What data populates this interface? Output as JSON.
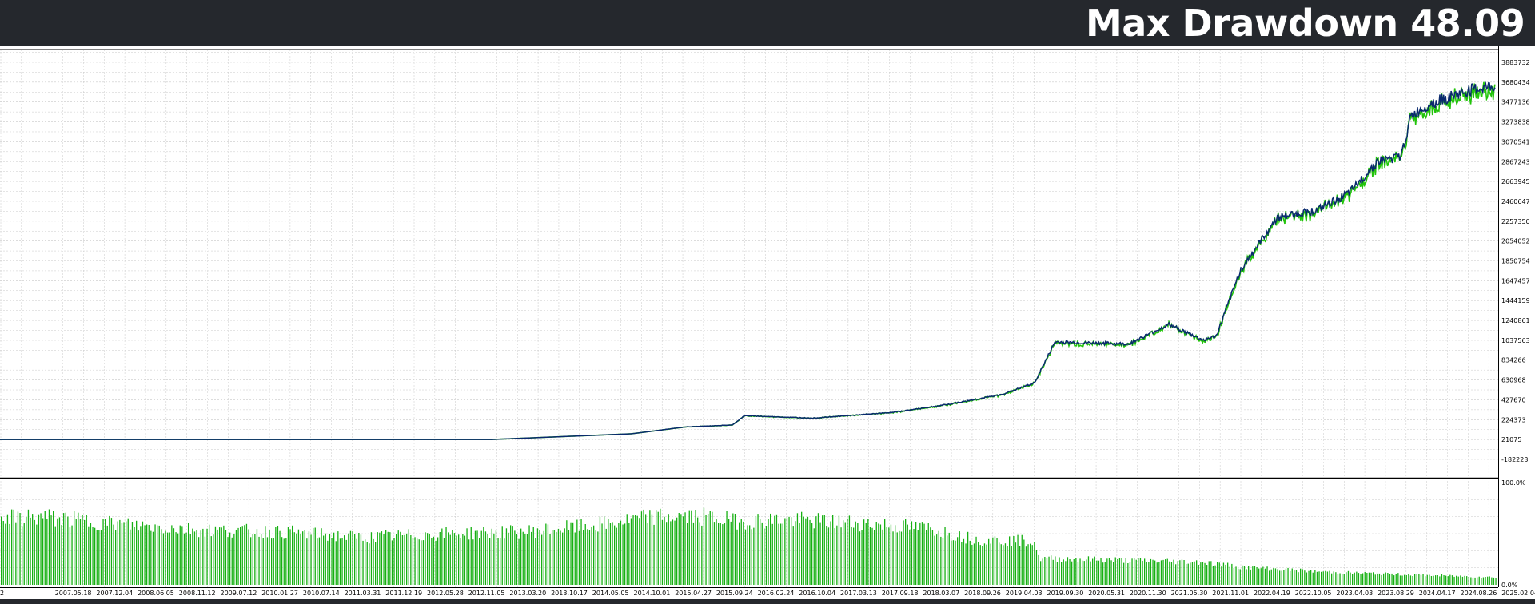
{
  "header": {
    "title": "Max Drawdown 48.09"
  },
  "colors": {
    "background": "#25282d",
    "plot_background": "#ffffff",
    "grid": "#c8c8c8",
    "balance_line": "#0a2a6e",
    "equity_line": "#22c40a",
    "deposit_load_bars": "#16b012"
  },
  "chart_data": [
    {
      "type": "line",
      "series": [
        {
          "name": "",
          "color": "#0a2a6e"
        },
        {
          "name": "",
          "color": "#22c40a"
        }
      ],
      "x_start": "2006-12-01",
      "x_end": "2025-07-01",
      "x": [
        "2006-12-01",
        "2009-06-01",
        "2013-01-01",
        "2014-10-01",
        "2015-06-01",
        "2016-01-01",
        "2016-02-24",
        "2017-01-01",
        "2018-01-01",
        "2018-09-01",
        "2019-05-01",
        "2019-09-30",
        "2020-01-01",
        "2020-11-30",
        "2021-06-01",
        "2021-11-01",
        "2022-01-01",
        "2022-04-19",
        "2022-10-05",
        "2023-04-03",
        "2023-08-29",
        "2024-01-01",
        "2024-04-17",
        "2024-06-01",
        "2024-08-26",
        "2025-03-01",
        "2025-07-01"
      ],
      "y": [
        21075,
        21075,
        21075,
        80000,
        150000,
        170000,
        265000,
        240000,
        300000,
        380000,
        480000,
        600000,
        1020000,
        1000000,
        1200000,
        1040000,
        1080000,
        1750000,
        2300000,
        2370000,
        2550000,
        2870000,
        2920000,
        3330000,
        3460000,
        3600000,
        3640000
      ],
      "y_ticks": [
        "3883732",
        "3680434",
        "3477136",
        "3273838",
        "3070541",
        "2867243",
        "2663945",
        "2460647",
        "2257350",
        "2054052",
        "1850754",
        "1647457",
        "1444159",
        "1240861",
        "1037563",
        "834266",
        "630968",
        "427670",
        "224373",
        "21075",
        "-182223"
      ],
      "ylim": [
        -182223,
        3883732
      ],
      "x_tick_labels": [
        "2",
        "2007.05.18",
        "2007.12.04",
        "2008.06.05",
        "2008.11.12",
        "2009.07.12",
        "2010.01.27",
        "2010.07.14",
        "2011.03.31",
        "2011.12.19",
        "2012.05.28",
        "2012.11.05",
        "2013.03.20",
        "2013.10.17",
        "2014.05.05",
        "2014.10.01",
        "2015.04.27",
        "2015.09.24",
        "2016.02.24",
        "2016.10.04",
        "2017.03.13",
        "2017.09.18",
        "2018.03.07",
        "2018.09.26",
        "2019.04.03",
        "2019.09.30",
        "2020.05.31",
        "2020.11.30",
        "2021.05.30",
        "2021.11.01",
        "2022.04.19",
        "2022.10.05",
        "2023.04.03",
        "2023.08.29",
        "2024.04.17",
        "2024.08.26",
        "2025.02.04"
      ],
      "grid": true
    },
    {
      "type": "bar",
      "y_ticks": [
        "100.0%",
        "0.0%"
      ],
      "ylim": [
        0,
        100
      ],
      "x": [
        "2006-12-01",
        "2007-06-01",
        "2008-06-01",
        "2009-06-01",
        "2010-06-01",
        "2011-06-01",
        "2012-06-01",
        "2013-06-01",
        "2014-06-01",
        "2015-01-01",
        "2015-09-01",
        "2016-02-01",
        "2016-08-01",
        "2017-06-01",
        "2018-06-01",
        "2019-01-01",
        "2019-09-30",
        "2019-10-15",
        "2020-11-30",
        "2021-11-01",
        "2022-04-19",
        "2023-04-03",
        "2024-08-26",
        "2025-07-01"
      ],
      "values": [
        70,
        72,
        64,
        58,
        56,
        50,
        54,
        56,
        64,
        72,
        72,
        67,
        69,
        66,
        60,
        48,
        46,
        28,
        26,
        24,
        19,
        14,
        10,
        8
      ],
      "grid": true
    }
  ]
}
